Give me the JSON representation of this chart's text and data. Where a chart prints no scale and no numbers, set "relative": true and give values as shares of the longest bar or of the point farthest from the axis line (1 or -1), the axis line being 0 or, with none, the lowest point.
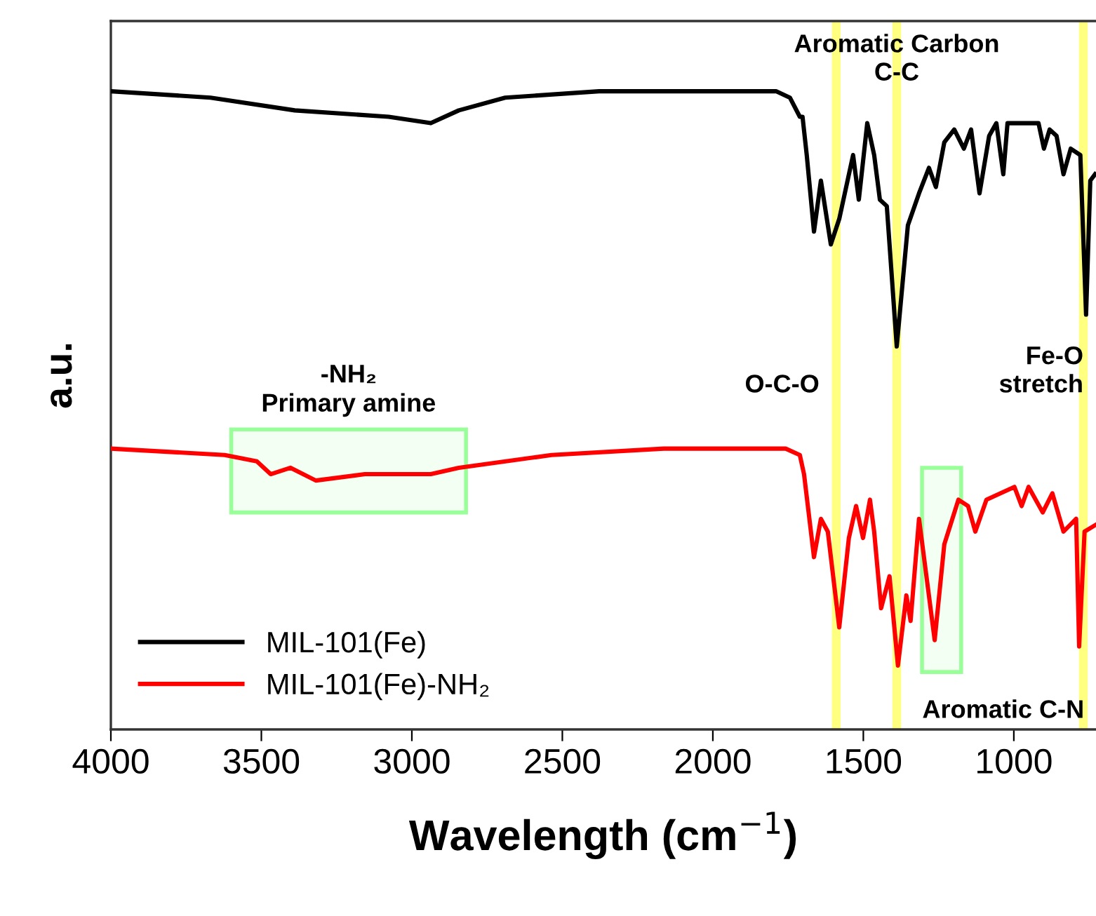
{
  "chart_data": {
    "type": "line",
    "relative": true,
    "xlabel": "Wavelength (cm$^{−1}$)",
    "ylabel": "a.u.",
    "xlim": [
      4000,
      727
    ],
    "xticks": [
      4000,
      3500,
      3000,
      2500,
      2000,
      1500,
      1000
    ],
    "tick_labels": "x",
    "grid": false,
    "legend": "bottom left",
    "line_style": "solid",
    "marker": "none",
    "series": [
      {
        "name": "MIL-101(Fe)",
        "color": "#000000",
        "x": [
          4000,
          3669,
          3389,
          3077,
          2937,
          2844,
          2690,
          2378,
          1790,
          1744,
          1711,
          1702,
          1688,
          1664,
          1641,
          1608,
          1580,
          1534,
          1515,
          1487,
          1464,
          1445,
          1422,
          1389,
          1352,
          1315,
          1282,
          1259,
          1231,
          1198,
          1166,
          1142,
          1114,
          1082,
          1058,
          1035,
          1021,
          965,
          918,
          900,
          881,
          858,
          835,
          811,
          779,
          760,
          746,
          730
        ],
        "values": [
          1.0,
          0.99,
          0.97,
          0.96,
          0.95,
          0.97,
          0.99,
          1.0,
          1.0,
          0.99,
          0.96,
          0.96,
          0.9,
          0.78,
          0.86,
          0.76,
          0.8,
          0.9,
          0.83,
          0.95,
          0.9,
          0.83,
          0.82,
          0.6,
          0.79,
          0.84,
          0.88,
          0.85,
          0.92,
          0.94,
          0.91,
          0.94,
          0.84,
          0.93,
          0.95,
          0.87,
          0.95,
          0.95,
          0.95,
          0.91,
          0.94,
          0.93,
          0.87,
          0.91,
          0.9,
          0.65,
          0.86,
          0.87
        ]
      },
      {
        "name": "MIL-101(Fe)-NH₂",
        "color": "#ff0000",
        "x": [
          4000,
          3622,
          3515,
          3469,
          3403,
          3319,
          3156,
          2937,
          2844,
          2536,
          2163,
          1758,
          1711,
          1697,
          1664,
          1641,
          1618,
          1580,
          1548,
          1524,
          1501,
          1478,
          1464,
          1441,
          1413,
          1385,
          1357,
          1343,
          1315,
          1263,
          1231,
          1184,
          1152,
          1128,
          1091,
          1044,
          998,
          974,
          951,
          904,
          872,
          835,
          793,
          783,
          765,
          730
        ],
        "values": [
          0.44,
          0.43,
          0.42,
          0.4,
          0.41,
          0.39,
          0.4,
          0.4,
          0.41,
          0.43,
          0.44,
          0.44,
          0.43,
          0.4,
          0.27,
          0.33,
          0.31,
          0.16,
          0.3,
          0.35,
          0.3,
          0.36,
          0.31,
          0.19,
          0.24,
          0.1,
          0.21,
          0.17,
          0.33,
          0.14,
          0.29,
          0.36,
          0.35,
          0.31,
          0.36,
          0.37,
          0.38,
          0.35,
          0.38,
          0.34,
          0.37,
          0.31,
          0.33,
          0.13,
          0.31,
          0.32
        ]
      }
    ],
    "ref_lines": [
      {
        "axis": "x",
        "value": 1590,
        "label": "O-C-O",
        "color": "#ffff80"
      },
      {
        "axis": "x",
        "value": 1389,
        "label": "Aromatic Carbon\nC-C",
        "color": "#ffff80"
      },
      {
        "axis": "x",
        "value": 769,
        "label": "Fe-O\nstretch",
        "color": "#ffff80"
      }
    ],
    "bands": [
      {
        "axis": "x",
        "from": 3600,
        "to": 2820,
        "label": "-NH₂\nPrimary amine",
        "color": "#99ff99"
      },
      {
        "axis": "x",
        "from": 1305,
        "to": 1175,
        "label": "Aromatic C-N",
        "color": "#99ff99"
      }
    ]
  }
}
